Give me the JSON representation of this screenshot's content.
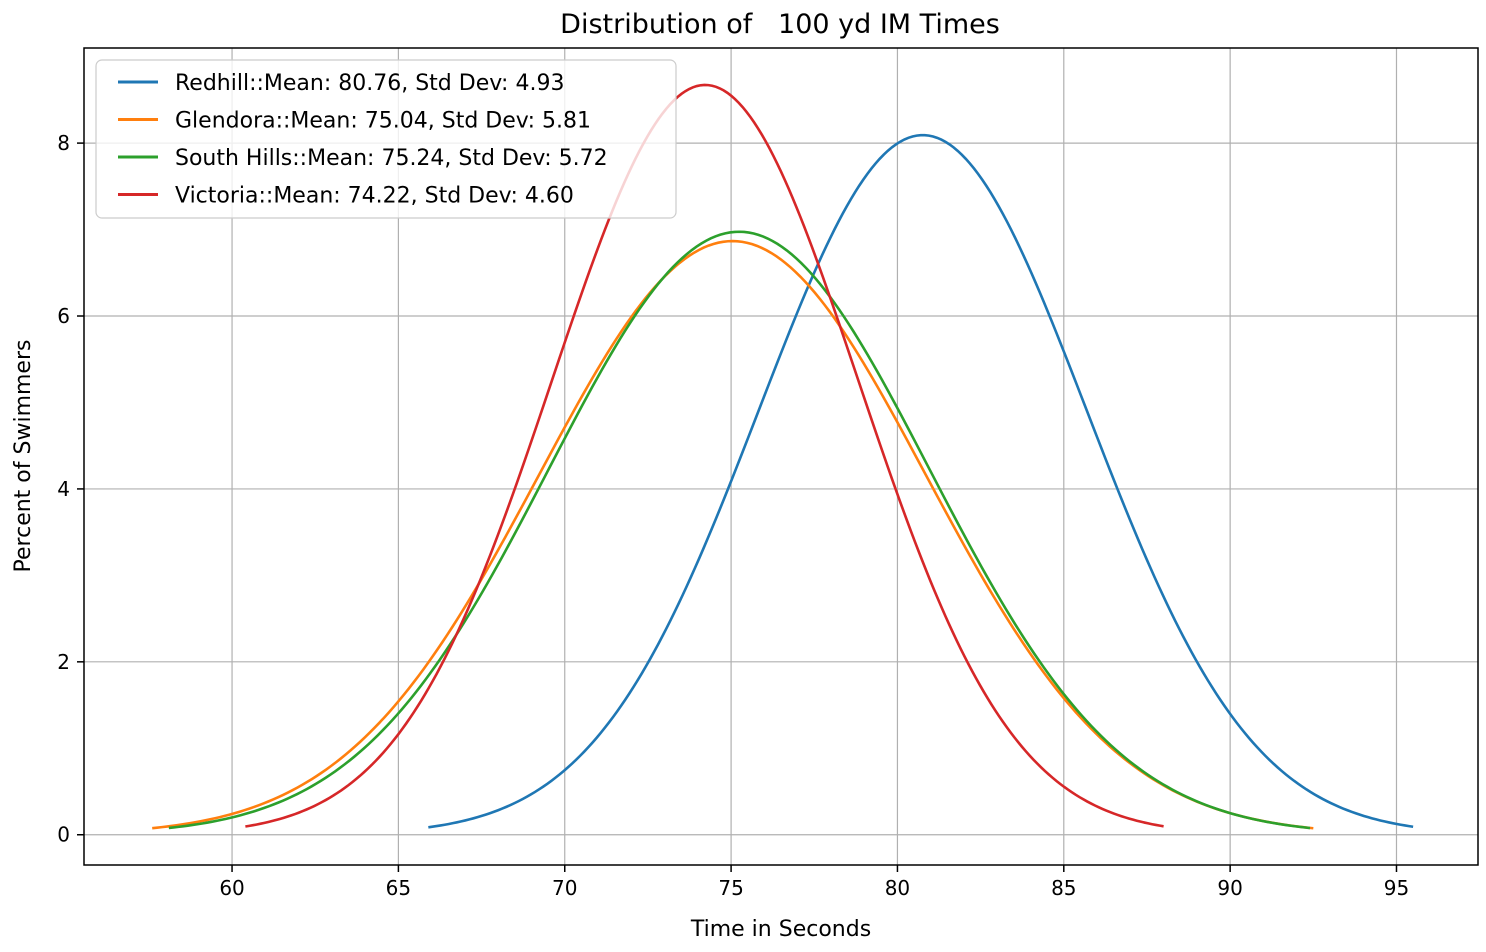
{
  "chart_data": {
    "type": "line",
    "title": "Distribution of   100 yd IM Times",
    "xlabel": "Time in Seconds",
    "ylabel": "Percent of Swimmers",
    "xlim": [
      55.55,
      97.45
    ],
    "ylim": [
      -0.35,
      9.1
    ],
    "xticks": [
      60,
      65,
      70,
      75,
      80,
      85,
      90,
      95
    ],
    "yticks": [
      0,
      2,
      4,
      6,
      8
    ],
    "grid": true,
    "legend_position": "upper-left",
    "y_unit": "percent",
    "series": [
      {
        "name": "Redhill::Mean: 80.76, Std Dev: 4.93",
        "mean": 80.76,
        "std": 4.93,
        "x_range": [
          65.9,
          95.5
        ],
        "color": "#1f77b4"
      },
      {
        "name": "Glendora::Mean: 75.04, Std Dev: 5.81",
        "mean": 75.04,
        "std": 5.81,
        "x_range": [
          57.6,
          92.5
        ],
        "color": "#ff7f0e"
      },
      {
        "name": "South Hills::Mean: 75.24, Std Dev: 5.72",
        "mean": 75.24,
        "std": 5.72,
        "x_range": [
          58.1,
          92.4
        ],
        "color": "#2ca02c"
      },
      {
        "name": "Victoria::Mean: 74.22, Std Dev: 4.60",
        "mean": 74.22,
        "std": 4.6,
        "x_range": [
          60.4,
          88.0
        ],
        "color": "#d62728"
      }
    ]
  }
}
